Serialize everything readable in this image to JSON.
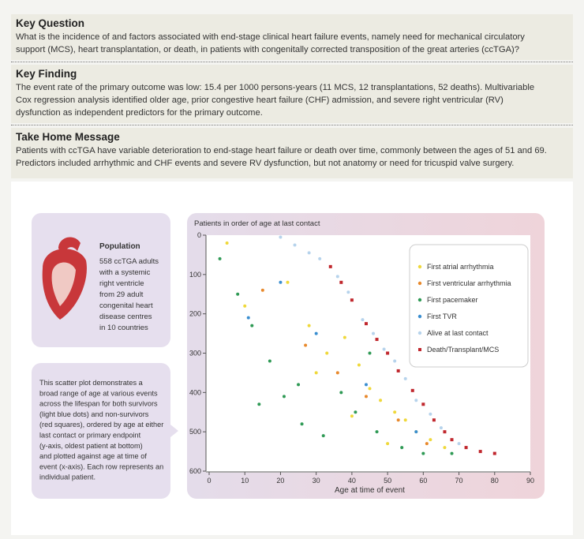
{
  "key_question": {
    "heading": "Key Question",
    "lines": [
      "What is the incidence of and factors associated with end-stage clinical heart failure events, namely need for mechanical circulatory",
      "support (MCS), heart transplantation, or death, in patients with congenitally corrected transposition of the great arteries (ccTGA)?"
    ]
  },
  "key_finding": {
    "heading": "Key Finding",
    "lines": [
      "The event rate of the primary outcome was low: 15.4 per 1000 persons-years (11 MCS, 12 transplantations, 52 deaths). Multivariable",
      "Cox regression analysis identified older age, prior congestive heart failure (CHF) admission, and severe right ventricular (RV)",
      "dysfunction as independent predictors for the primary outcome."
    ]
  },
  "take_home": {
    "heading": "Take Home Message",
    "lines": [
      "Patients with ccTGA have variable deterioration to end-stage heart failure or death over time, commonly between the ages of 51 and 69.",
      "Predictors included arrhythmic and CHF events and severe RV dysfunction, but not anatomy or need for tricuspid valve surgery."
    ]
  },
  "population": {
    "heading": "Population",
    "lines": [
      "558 ccTGA adults",
      "with a systemic",
      "right ventricle",
      "from 29 adult",
      "congenital heart",
      "disease centres",
      "in 10 countries"
    ]
  },
  "description": {
    "lines": [
      "This scatter plot demonstrates a",
      "broad range of age at various events",
      "across the lifespan for both survivors",
      "(light blue dots) and non-survivors",
      "(red squares), ordered by age at either",
      "last contact or primary endpoint",
      "(y-axis, oldest patient at bottom)",
      "and plotted against age at time of",
      "event (x-axis). Each row represents an",
      "individual patient."
    ]
  },
  "chart_data": {
    "type": "scatter",
    "y_label": "Patients in order of age at last contact",
    "x_label": "Age at time of event",
    "xlim": [
      0,
      90
    ],
    "xticks": [
      0,
      10,
      20,
      30,
      40,
      50,
      60,
      70,
      80,
      90
    ],
    "ylim": [
      0,
      600
    ],
    "yticks": [
      0,
      100,
      200,
      300,
      400,
      500,
      600
    ],
    "y_inverted": true,
    "legend": "upper right",
    "series": [
      {
        "name": "First atrial arrhythmia",
        "color": "#efd83a",
        "marker": "dot",
        "x": [
          5,
          10,
          22,
          28,
          33,
          38,
          42,
          45,
          48,
          52,
          55,
          58,
          62,
          66,
          40,
          30,
          50
        ],
        "values": [
          20,
          180,
          120,
          230,
          300,
          260,
          330,
          390,
          420,
          450,
          470,
          500,
          520,
          540,
          460,
          350,
          530
        ]
      },
      {
        "name": "First ventricular arrhythmia",
        "color": "#e8892c",
        "marker": "dot",
        "x": [
          15,
          27,
          36,
          44,
          53,
          61
        ],
        "values": [
          140,
          280,
          350,
          410,
          470,
          530
        ]
      },
      {
        "name": "First pacemaker",
        "color": "#2f9a55",
        "marker": "dot",
        "x": [
          3,
          8,
          12,
          17,
          21,
          26,
          32,
          37,
          41,
          47,
          54,
          60,
          68,
          14,
          25,
          45
        ],
        "values": [
          60,
          150,
          230,
          320,
          410,
          480,
          510,
          400,
          450,
          500,
          540,
          555,
          555,
          430,
          380,
          300
        ]
      },
      {
        "name": "First TVR",
        "color": "#3a8ed0",
        "marker": "dot",
        "x": [
          11,
          20,
          30,
          44,
          58
        ],
        "values": [
          210,
          120,
          250,
          380,
          500
        ]
      },
      {
        "name": "Alive at last contact",
        "color": "#b6d3ec",
        "marker": "dot",
        "x": [
          20,
          24,
          28,
          31,
          36,
          39,
          43,
          46,
          49,
          52,
          55,
          58,
          62,
          65,
          70
        ],
        "values": [
          5,
          25,
          45,
          60,
          105,
          145,
          215,
          250,
          290,
          320,
          365,
          420,
          455,
          490,
          530
        ]
      },
      {
        "name": "Death/Transplant/MCS",
        "color": "#c0272d",
        "marker": "square",
        "x": [
          34,
          37,
          40,
          44,
          47,
          50,
          53,
          57,
          60,
          63,
          66,
          68,
          72,
          76,
          80
        ],
        "values": [
          80,
          120,
          165,
          225,
          265,
          300,
          345,
          395,
          430,
          470,
          500,
          520,
          540,
          550,
          555
        ]
      }
    ]
  }
}
